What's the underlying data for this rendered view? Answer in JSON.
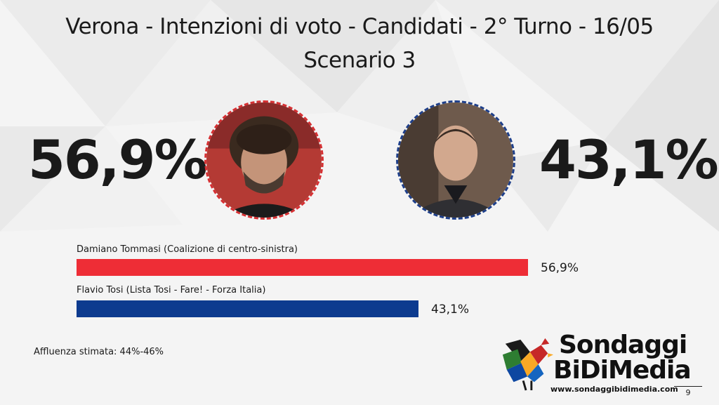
{
  "title_line1": "Verona - Intenzioni di voto - Candidati - 2° Turno - 16/05",
  "title_line2": "Scenario 3",
  "candidates": [
    {
      "big_pct": "56,9%",
      "label": "Damiano Tommasi (Coalizione di centro-sinistra)",
      "value_label": "56,9%",
      "color": "#ee2d36",
      "ring_color": "#d63033"
    },
    {
      "big_pct": "43,1%",
      "label": "Flavio Tosi (Lista Tosi - Fare! - Forza Italia)",
      "value_label": "43,1%",
      "color": "#0d3b8f",
      "ring_color": "#1e3f8a"
    }
  ],
  "chart_data": {
    "type": "bar",
    "orientation": "horizontal",
    "categories": [
      "Damiano Tommasi (Coalizione di centro-sinistra)",
      "Flavio Tosi (Lista Tosi - Fare! - Forza Italia)"
    ],
    "values": [
      56.9,
      43.1
    ],
    "value_labels": [
      "56,9%",
      "43,1%"
    ],
    "colors": [
      "#ee2d36",
      "#0d3b8f"
    ]
  },
  "turnout": "Affluenza stimata: 44%-46%",
  "logo": {
    "line1": "Sondaggi",
    "line2": "BiDiMedia",
    "url": "www.sondaggibidimedia.com"
  },
  "page_number": "9"
}
